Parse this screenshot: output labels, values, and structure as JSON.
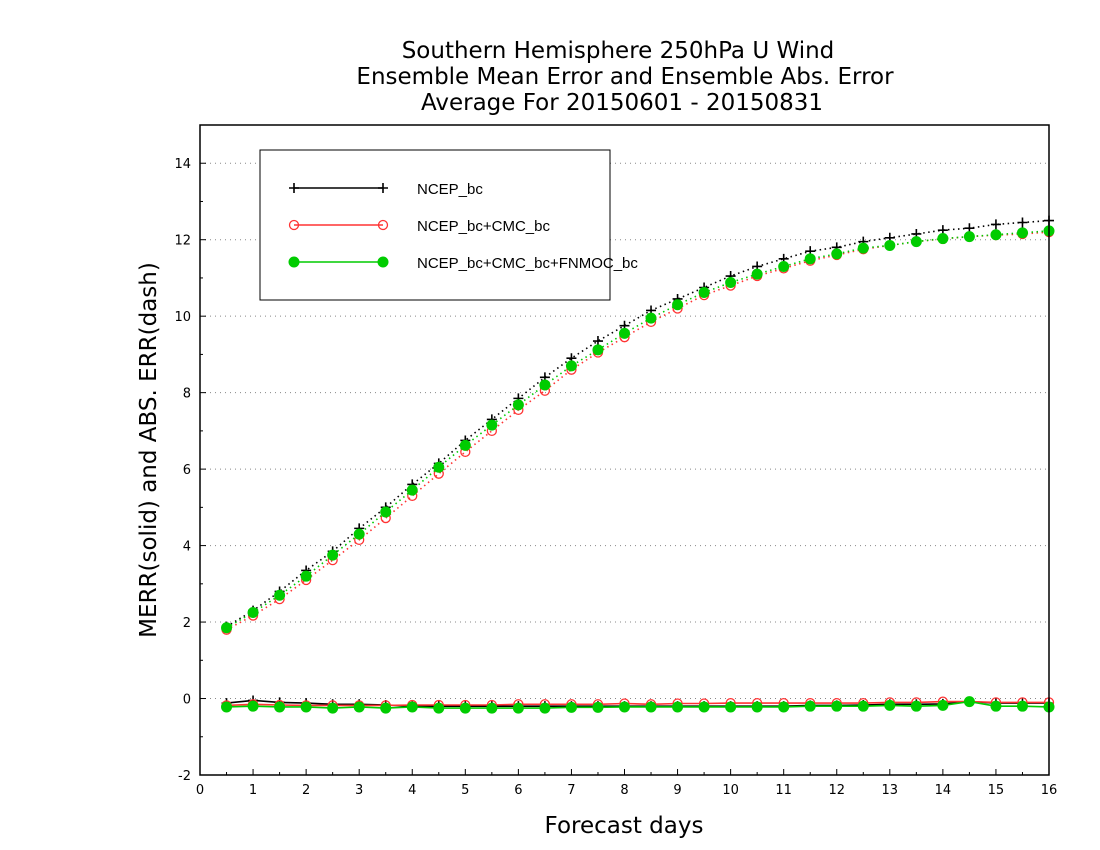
{
  "chart_data": {
    "type": "line",
    "title": [
      "Southern Hemisphere 250hPa U Wind",
      "Ensemble Mean Error and Ensemble Abs. Error",
      "Average For 20150601 - 20150831"
    ],
    "xlabel": "Forecast days",
    "ylabel": "MERR(solid) and ABS. ERR(dash)",
    "xlim": [
      0,
      16
    ],
    "ylim": [
      -2,
      15
    ],
    "xticks": [
      0,
      1,
      2,
      3,
      4,
      5,
      6,
      7,
      8,
      9,
      10,
      11,
      12,
      13,
      14,
      15,
      16
    ],
    "yticks": [
      -2,
      0,
      2,
      4,
      6,
      8,
      10,
      12,
      14
    ],
    "grid": "horizontal dotted",
    "legend_position": "top-left",
    "x": [
      0.5,
      1,
      1.5,
      2,
      2.5,
      3,
      3.5,
      4,
      4.5,
      5,
      5.5,
      6,
      6.5,
      7,
      7.5,
      8,
      8.5,
      9,
      9.5,
      10,
      10.5,
      11,
      11.5,
      12,
      12.5,
      13,
      13.5,
      14,
      14.5,
      15,
      15.5,
      16
    ],
    "series": [
      {
        "name": "NCEP_bc",
        "color": "#000000",
        "marker": "plus",
        "abs_err": [
          1.88,
          2.3,
          2.8,
          3.35,
          3.85,
          4.45,
          5.0,
          5.6,
          6.15,
          6.75,
          7.3,
          7.85,
          8.4,
          8.9,
          9.35,
          9.75,
          10.15,
          10.45,
          10.75,
          11.05,
          11.3,
          11.5,
          11.7,
          11.8,
          11.95,
          12.05,
          12.15,
          12.25,
          12.3,
          12.4,
          12.45,
          12.5
        ],
        "mean_err": [
          -0.12,
          -0.05,
          -0.1,
          -0.12,
          -0.15,
          -0.15,
          -0.17,
          -0.2,
          -0.2,
          -0.2,
          -0.2,
          -0.2,
          -0.2,
          -0.2,
          -0.2,
          -0.2,
          -0.2,
          -0.2,
          -0.2,
          -0.2,
          -0.2,
          -0.2,
          -0.18,
          -0.18,
          -0.17,
          -0.15,
          -0.15,
          -0.14,
          -0.08,
          -0.12,
          -0.12,
          -0.12
        ]
      },
      {
        "name": "NCEP_bc+CMC_bc",
        "color": "#ff3333",
        "marker": "open-circle",
        "abs_err": [
          1.8,
          2.17,
          2.6,
          3.1,
          3.62,
          4.15,
          4.72,
          5.3,
          5.88,
          6.45,
          7.0,
          7.55,
          8.05,
          8.6,
          9.05,
          9.45,
          9.85,
          10.2,
          10.55,
          10.8,
          11.05,
          11.25,
          11.45,
          11.6,
          11.75,
          11.85,
          11.95,
          12.02,
          12.08,
          12.12,
          12.15,
          12.2
        ],
        "mean_err": [
          -0.18,
          -0.15,
          -0.17,
          -0.18,
          -0.18,
          -0.18,
          -0.18,
          -0.17,
          -0.17,
          -0.17,
          -0.17,
          -0.15,
          -0.15,
          -0.15,
          -0.15,
          -0.13,
          -0.15,
          -0.13,
          -0.13,
          -0.12,
          -0.12,
          -0.12,
          -0.12,
          -0.12,
          -0.12,
          -0.1,
          -0.1,
          -0.08,
          -0.08,
          -0.1,
          -0.1,
          -0.1
        ]
      },
      {
        "name": "NCEP_bc+CMC_bc+FNMOC_bc",
        "color": "#00cc00",
        "marker": "filled-circle",
        "abs_err": [
          1.85,
          2.25,
          2.7,
          3.2,
          3.75,
          4.3,
          4.88,
          5.45,
          6.05,
          6.62,
          7.15,
          7.68,
          8.2,
          8.7,
          9.12,
          9.55,
          9.95,
          10.3,
          10.62,
          10.88,
          11.1,
          11.3,
          11.5,
          11.63,
          11.78,
          11.85,
          11.95,
          12.03,
          12.08,
          12.13,
          12.18,
          12.23
        ],
        "mean_err": [
          -0.22,
          -0.2,
          -0.22,
          -0.22,
          -0.25,
          -0.22,
          -0.25,
          -0.22,
          -0.25,
          -0.25,
          -0.25,
          -0.25,
          -0.25,
          -0.23,
          -0.23,
          -0.22,
          -0.22,
          -0.22,
          -0.22,
          -0.22,
          -0.22,
          -0.22,
          -0.2,
          -0.2,
          -0.2,
          -0.18,
          -0.2,
          -0.18,
          -0.08,
          -0.2,
          -0.2,
          -0.22
        ]
      }
    ]
  }
}
